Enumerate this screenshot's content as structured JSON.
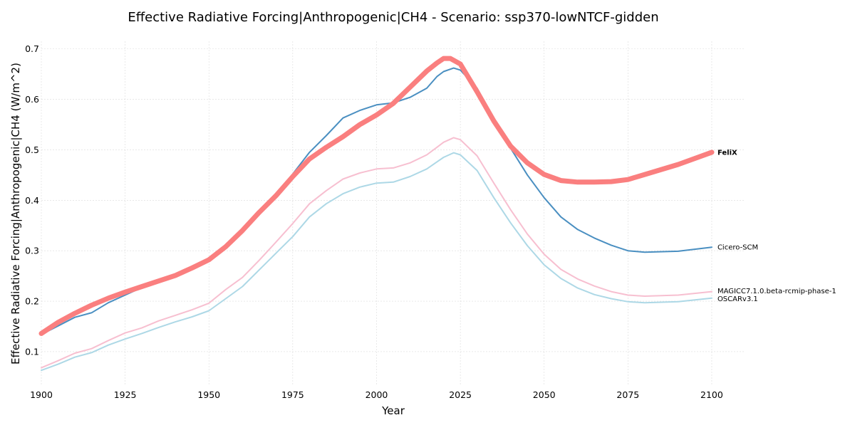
{
  "chart_data": {
    "type": "line",
    "title": "Effective Radiative Forcing|Anthropogenic|CH4 - Scenario: ssp370-lowNTCF-gidden",
    "xlabel": "Year",
    "ylabel": "Effective Radiative Forcing|Anthropogenic|CH4 (W/m^2)",
    "xlim": [
      1900,
      2110
    ],
    "ylim": [
      0.035,
      0.715
    ],
    "xticks": [
      1900,
      1925,
      1950,
      1975,
      2000,
      2025,
      2050,
      2075,
      2100
    ],
    "xtick_labels": [
      "1900",
      "1925",
      "1950",
      "1975",
      "2000",
      "2025",
      "2050",
      "2075",
      "2100"
    ],
    "yticks": [
      0.1,
      0.2,
      0.3,
      0.4,
      0.5,
      0.6,
      0.7
    ],
    "ytick_labels": [
      "0.1",
      "0.2",
      "0.3",
      "0.4",
      "0.5",
      "0.6",
      "0.7"
    ],
    "grid": true,
    "legend": "inline labels at line ends",
    "series": [
      {
        "name": "OSCARv3.1",
        "color": "#add8e6",
        "width": 2,
        "bold": false,
        "x": [
          1900,
          1905,
          1910,
          1915,
          1920,
          1925,
          1930,
          1935,
          1940,
          1945,
          1950,
          1955,
          1960,
          1965,
          1970,
          1975,
          1980,
          1985,
          1990,
          1995,
          2000,
          2005,
          2010,
          2015,
          2018,
          2020,
          2023,
          2025,
          2030,
          2035,
          2040,
          2045,
          2050,
          2055,
          2060,
          2065,
          2070,
          2075,
          2080,
          2090,
          2100
        ],
        "y": [
          0.063,
          0.075,
          0.089,
          0.098,
          0.113,
          0.125,
          0.136,
          0.148,
          0.159,
          0.169,
          0.181,
          0.205,
          0.229,
          0.262,
          0.295,
          0.328,
          0.367,
          0.393,
          0.413,
          0.426,
          0.434,
          0.436,
          0.447,
          0.462,
          0.476,
          0.485,
          0.494,
          0.49,
          0.459,
          0.405,
          0.355,
          0.31,
          0.272,
          0.245,
          0.226,
          0.213,
          0.205,
          0.199,
          0.197,
          0.199,
          0.206
        ]
      },
      {
        "name": "MAGICC7.1.0.beta-rcmip-phase-1",
        "color": "#f7bfd0",
        "width": 2,
        "bold": false,
        "x": [
          1900,
          1905,
          1910,
          1915,
          1920,
          1925,
          1930,
          1935,
          1940,
          1945,
          1950,
          1955,
          1960,
          1965,
          1970,
          1975,
          1980,
          1985,
          1990,
          1995,
          2000,
          2005,
          2010,
          2015,
          2018,
          2020,
          2023,
          2025,
          2030,
          2035,
          2040,
          2045,
          2050,
          2055,
          2060,
          2065,
          2070,
          2075,
          2080,
          2090,
          2100
        ],
        "y": [
          0.068,
          0.082,
          0.097,
          0.106,
          0.122,
          0.137,
          0.147,
          0.161,
          0.172,
          0.183,
          0.196,
          0.223,
          0.247,
          0.281,
          0.317,
          0.354,
          0.393,
          0.419,
          0.442,
          0.454,
          0.462,
          0.464,
          0.474,
          0.49,
          0.505,
          0.515,
          0.524,
          0.52,
          0.488,
          0.434,
          0.381,
          0.333,
          0.293,
          0.263,
          0.244,
          0.23,
          0.219,
          0.212,
          0.21,
          0.212,
          0.219
        ]
      },
      {
        "name": "Cicero-SCM",
        "color": "#4a8fc1",
        "width": 2,
        "bold": false,
        "x": [
          1900,
          1905,
          1910,
          1915,
          1920,
          1925,
          1930,
          1935,
          1940,
          1945,
          1950,
          1955,
          1960,
          1965,
          1970,
          1975,
          1980,
          1985,
          1990,
          1995,
          2000,
          2005,
          2010,
          2015,
          2018,
          2020,
          2023,
          2025,
          2030,
          2035,
          2040,
          2045,
          2050,
          2055,
          2060,
          2065,
          2070,
          2075,
          2080,
          2090,
          2100
        ],
        "y": [
          0.134,
          0.151,
          0.168,
          0.177,
          0.197,
          0.212,
          0.227,
          0.24,
          0.253,
          0.265,
          0.279,
          0.305,
          0.336,
          0.372,
          0.412,
          0.452,
          0.495,
          0.528,
          0.563,
          0.578,
          0.589,
          0.593,
          0.604,
          0.622,
          0.645,
          0.655,
          0.662,
          0.658,
          0.622,
          0.562,
          0.503,
          0.45,
          0.405,
          0.367,
          0.342,
          0.325,
          0.311,
          0.3,
          0.297,
          0.299,
          0.307
        ]
      },
      {
        "name": "FeliX",
        "color": "#fa7f7f",
        "width": 7,
        "bold": true,
        "x": [
          1900,
          1905,
          1910,
          1915,
          1920,
          1925,
          1930,
          1935,
          1940,
          1945,
          1950,
          1955,
          1960,
          1965,
          1970,
          1975,
          1980,
          1985,
          1990,
          1995,
          2000,
          2005,
          2010,
          2015,
          2018,
          2020,
          2022,
          2025,
          2030,
          2035,
          2040,
          2045,
          2050,
          2055,
          2060,
          2065,
          2070,
          2075,
          2080,
          2090,
          2100
        ],
        "y": [
          0.136,
          0.158,
          0.176,
          0.192,
          0.206,
          0.218,
          0.229,
          0.24,
          0.251,
          0.266,
          0.282,
          0.308,
          0.34,
          0.376,
          0.409,
          0.447,
          0.482,
          0.505,
          0.526,
          0.55,
          0.569,
          0.592,
          0.624,
          0.656,
          0.672,
          0.681,
          0.681,
          0.67,
          0.615,
          0.557,
          0.507,
          0.474,
          0.451,
          0.439,
          0.436,
          0.436,
          0.437,
          0.441,
          0.451,
          0.471,
          0.495
        ]
      }
    ]
  }
}
